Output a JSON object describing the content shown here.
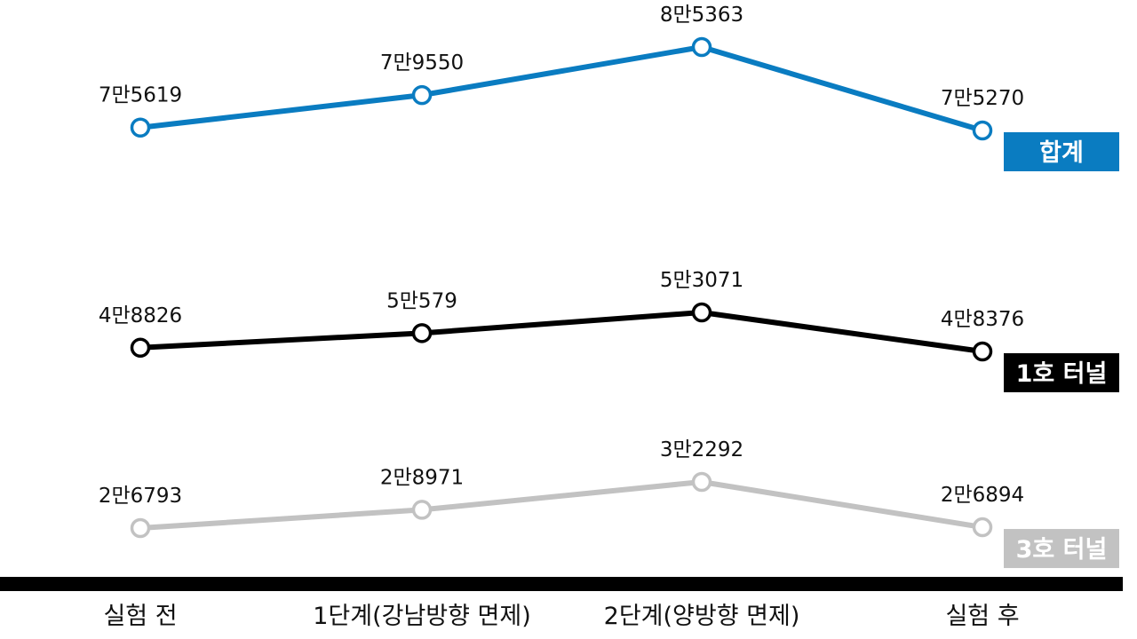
{
  "chart_data": {
    "type": "line",
    "categories": [
      "실험 전",
      "1단계(강남방향 면제)",
      "2단계(양방향 면제)",
      "실험 후"
    ],
    "series": [
      {
        "name": "합계",
        "values": [
          75619,
          79550,
          85363,
          75270
        ],
        "labels": [
          "7만5619",
          "7만9550",
          "8만5363",
          "7만5270"
        ],
        "color": "#0a7cc1"
      },
      {
        "name": "1호 터널",
        "values": [
          48826,
          50579,
          53071,
          48376
        ],
        "labels": [
          "4만8826",
          "5만579",
          "5만3071",
          "4만8376"
        ],
        "color": "#000000"
      },
      {
        "name": "3호 터널",
        "values": [
          26793,
          28971,
          32292,
          26894
        ],
        "labels": [
          "2만6793",
          "2만8971",
          "3만2292",
          "2만6894"
        ],
        "color": "#c2c2c2"
      }
    ],
    "legend_placement": "right, at end of each line",
    "grid": false
  }
}
